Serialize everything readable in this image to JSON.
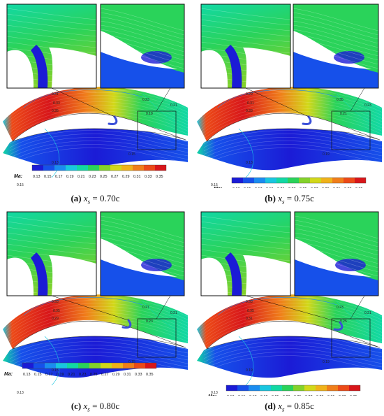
{
  "colorbar": {
    "title": "Ma:",
    "ticks": [
      "0.13",
      "0.15",
      "0.17",
      "0.19",
      "0.21",
      "0.23",
      "0.25",
      "0.27",
      "0.29",
      "0.31",
      "0.33",
      "0.35"
    ],
    "colors": [
      "#1b1bd6",
      "#1650ea",
      "#1b8cf0",
      "#19c6e0",
      "#12d8a4",
      "#2ad35a",
      "#84d22a",
      "#d2d81a",
      "#f0b21a",
      "#f07e1a",
      "#ec4a18",
      "#d8161a"
    ]
  },
  "panels": [
    {
      "id": "a",
      "tag": "(a)",
      "var": "x",
      "sub": "s",
      "eq": " = 0.70c",
      "contours": [
        "0.31",
        "0.33",
        "0.35",
        "0.23",
        "0.21",
        "0.19",
        "0.15",
        "0.13",
        "0.15"
      ]
    },
    {
      "id": "b",
      "tag": "(b)",
      "var": "x",
      "sub": "s",
      "eq": " = 0.75c",
      "contours": [
        "0.29",
        "0.31",
        "0.33",
        "0.35",
        "0.23",
        "0.21",
        "0.19",
        "0.13",
        "0.15"
      ]
    },
    {
      "id": "c",
      "tag": "(c)",
      "var": "x",
      "sub": "s",
      "eq": " = 0.80c",
      "contours": [
        "0.33",
        "0.35",
        "0.29",
        "0.27",
        "0.21",
        "0.23",
        "0.15",
        "0.15",
        "0.13"
      ]
    },
    {
      "id": "d",
      "tag": "(d)",
      "var": "x",
      "sub": "s",
      "eq": " = 0.85c",
      "contours": [
        "0.33",
        "0.35",
        "0.31",
        "0.23",
        "0.21",
        "0.25",
        "0.19",
        "0.19",
        "0.13"
      ]
    }
  ]
}
